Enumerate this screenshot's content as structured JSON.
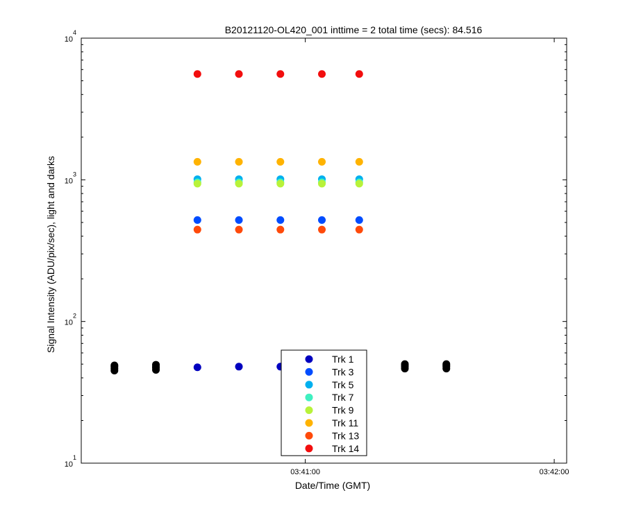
{
  "chart_data": {
    "type": "scatter",
    "title": "B20121120-OL420_001 inttime = 2 total time (secs): 84.516",
    "xlabel": "Date/Time (GMT)",
    "ylabel": "Signal Intensity (ADU/pix/sec), light and darks",
    "y_scale": "log",
    "ylim": [
      10,
      10000
    ],
    "xlim": [
      "03:40:06",
      "03:42:03"
    ],
    "x_tick_labels": [
      "03:41:00",
      "03:42:00"
    ],
    "x_ticks": [
      "03:41:00",
      "03:42:00"
    ],
    "y_tick_labels": [
      {
        "base": "10",
        "exp": "1"
      },
      {
        "base": "10",
        "exp": "2"
      },
      {
        "base": "10",
        "exp": "3"
      },
      {
        "base": "10",
        "exp": "4"
      }
    ],
    "y_ticks": [
      10,
      100,
      1000,
      10000
    ],
    "grid": false,
    "legend_position": "bottom-center",
    "series": [
      {
        "name": "",
        "color": "#000000",
        "x": [
          "03:40:14",
          "03:40:14",
          "03:40:14",
          "03:40:14",
          "03:40:24",
          "03:40:24",
          "03:40:24",
          "03:40:24",
          "03:41:24",
          "03:41:24",
          "03:41:24",
          "03:41:24",
          "03:41:34",
          "03:41:34",
          "03:41:34",
          "03:41:34"
        ],
        "y": [
          45,
          46.5,
          48,
          49,
          45.5,
          47,
          48,
          49.5,
          46.5,
          48,
          49,
          50,
          46.5,
          48,
          49,
          50
        ]
      },
      {
        "name": "Trk 1",
        "color": "#0000bf",
        "x": [
          "03:40:34",
          "03:40:44",
          "03:40:54",
          "03:41:04",
          "03:41:13"
        ],
        "y": [
          47.5,
          48,
          48,
          48,
          48
        ]
      },
      {
        "name": "Trk 3",
        "color": "#004cff",
        "x": [
          "03:40:34",
          "03:40:44",
          "03:40:54",
          "03:41:04",
          "03:41:13"
        ],
        "y": [
          520,
          520,
          520,
          520,
          520
        ]
      },
      {
        "name": "Trk 5",
        "color": "#00b0ef",
        "x": [
          "03:40:34",
          "03:40:44",
          "03:40:54",
          "03:41:04",
          "03:41:13"
        ],
        "y": [
          1010,
          1010,
          1010,
          1010,
          1010
        ]
      },
      {
        "name": "Trk 7",
        "color": "#3ff0c0",
        "x": [
          "03:40:34",
          "03:40:44",
          "03:40:54",
          "03:41:04",
          "03:41:13"
        ],
        "y": [
          960,
          960,
          960,
          960,
          960
        ]
      },
      {
        "name": "Trk 9",
        "color": "#b8f23a",
        "x": [
          "03:40:34",
          "03:40:44",
          "03:40:54",
          "03:41:04",
          "03:41:13"
        ],
        "y": [
          940,
          940,
          940,
          940,
          940
        ]
      },
      {
        "name": "Trk 11",
        "color": "#ffb300",
        "x": [
          "03:40:34",
          "03:40:44",
          "03:40:54",
          "03:41:04",
          "03:41:13"
        ],
        "y": [
          1340,
          1340,
          1340,
          1340,
          1340
        ]
      },
      {
        "name": "Trk 13",
        "color": "#ff4a0a",
        "x": [
          "03:40:34",
          "03:40:44",
          "03:40:54",
          "03:41:04",
          "03:41:13"
        ],
        "y": [
          445,
          445,
          445,
          445,
          445
        ]
      },
      {
        "name": "Trk 14",
        "color": "#f20e0e",
        "x": [
          "03:40:34",
          "03:40:44",
          "03:40:54",
          "03:41:04",
          "03:41:13"
        ],
        "y": [
          5580,
          5580,
          5580,
          5580,
          5580
        ]
      }
    ]
  }
}
